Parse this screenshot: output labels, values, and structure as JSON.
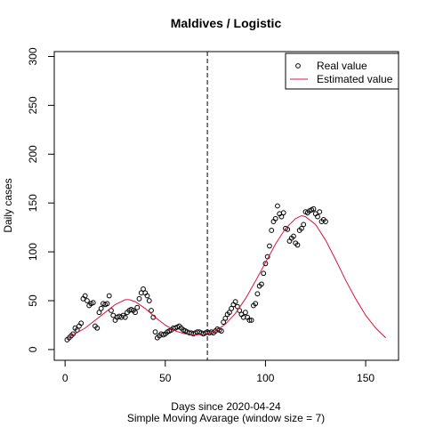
{
  "chart_data": {
    "type": "scatter_line",
    "title": "Maldives / Logistic",
    "xlabel": "Days since 2020-04-24",
    "subtitle": "Simple Moving Avarage (window size = 7)",
    "ylabel": "Daily cases",
    "xlim": [
      -5.4,
      166.4
    ],
    "xticks": [
      0,
      50,
      100,
      150
    ],
    "ylim": [
      -11,
      305
    ],
    "yticks": [
      0,
      50,
      100,
      150,
      200,
      250,
      300
    ],
    "vline": 71,
    "legend": "topright",
    "series": [
      {
        "name": "Real value",
        "color": "#000000",
        "x": [
          1,
          2,
          3,
          4,
          5,
          6,
          7,
          8,
          9,
          10,
          11,
          12,
          13,
          14,
          15,
          16,
          17,
          18,
          19,
          20,
          21,
          22,
          23,
          24,
          25,
          26,
          27,
          28,
          29,
          30,
          31,
          32,
          33,
          34,
          35,
          36,
          37,
          38,
          39,
          40,
          41,
          42,
          43,
          44,
          45,
          46,
          47,
          48,
          49,
          50,
          51,
          52,
          53,
          54,
          55,
          56,
          57,
          58,
          59,
          60,
          61,
          62,
          63,
          64,
          65,
          66,
          67,
          68,
          69,
          70,
          71,
          72,
          73,
          74,
          75,
          76,
          77,
          78,
          79,
          80,
          81,
          82,
          83,
          84,
          85,
          86,
          87,
          88,
          89,
          90,
          91,
          92,
          93,
          94,
          95,
          96,
          97,
          98,
          99,
          100,
          101,
          102,
          103,
          104,
          105,
          106,
          107,
          108,
          109,
          110,
          111,
          112,
          113,
          114,
          115,
          116,
          117,
          118,
          119,
          120,
          121,
          122,
          123,
          124,
          125,
          126,
          127,
          128,
          129,
          130
        ],
        "values": [
          10,
          12,
          14,
          16,
          22,
          20,
          24,
          27,
          52,
          55,
          50,
          45,
          47,
          48,
          24,
          22,
          38,
          42,
          47,
          46,
          47,
          55,
          40,
          35,
          30,
          33,
          34,
          33,
          35,
          33,
          38,
          40,
          41,
          40,
          38,
          43,
          52,
          58,
          62,
          58,
          55,
          50,
          40,
          33,
          18,
          12,
          14,
          16,
          15,
          16,
          18,
          19,
          20,
          22,
          22,
          23,
          24,
          22,
          20,
          19,
          18,
          17,
          17,
          16,
          17,
          18,
          18,
          17,
          16,
          17,
          18,
          17,
          18,
          17,
          19,
          21,
          20,
          19,
          28,
          32,
          36,
          38,
          42,
          46,
          49,
          44,
          40,
          36,
          33,
          38,
          33,
          30,
          30,
          45,
          47,
          57,
          65,
          67,
          78,
          88,
          95,
          106,
          122,
          131,
          134,
          147,
          139,
          136,
          140,
          124,
          123,
          111,
          114,
          116,
          109,
          107,
          122,
          124,
          128,
          141,
          140,
          142,
          143,
          144,
          139,
          136,
          141,
          131,
          133,
          131
        ]
      },
      {
        "name": "Estimated value",
        "color": "#dc143c",
        "x": [
          1,
          5,
          10,
          15,
          20,
          25,
          30,
          32,
          35,
          40,
          45,
          50,
          55,
          60,
          65,
          70,
          75,
          80,
          85,
          90,
          95,
          100,
          105,
          110,
          115,
          118,
          120,
          125,
          130,
          135,
          140,
          145,
          150,
          155,
          160
        ],
        "values": [
          13,
          16,
          22,
          30,
          38,
          46,
          51,
          51,
          49,
          42,
          33,
          25,
          19,
          16,
          15,
          16,
          19,
          26,
          37,
          52,
          70,
          89,
          108,
          124,
          134,
          137,
          136,
          128,
          112,
          92,
          71,
          52,
          35,
          22,
          12
        ]
      }
    ]
  }
}
